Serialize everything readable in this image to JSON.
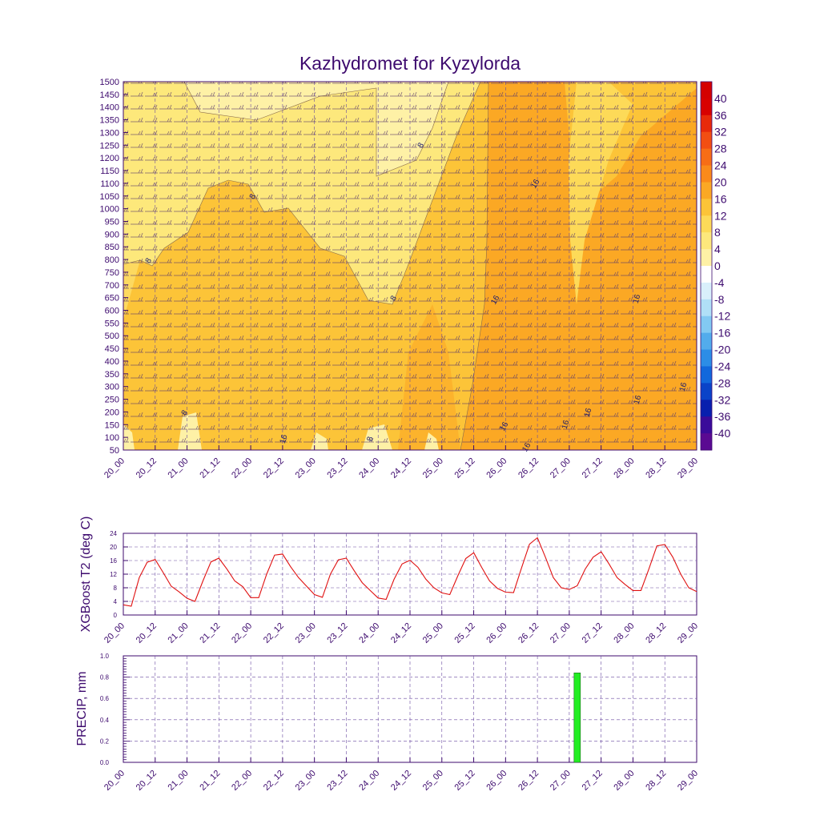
{
  "title": "Kazhydromet for Kyzylorda",
  "time_labels": [
    "20_00",
    "20_12",
    "21_00",
    "21_12",
    "22_00",
    "22_12",
    "23_00",
    "23_12",
    "24_00",
    "24_12",
    "25_00",
    "25_12",
    "26_00",
    "26_12",
    "27_00",
    "27_12",
    "28_00",
    "28_12",
    "29_00"
  ],
  "cross_section": {
    "y_ticks": [
      "50",
      "100",
      "150",
      "200",
      "250",
      "300",
      "350",
      "400",
      "450",
      "500",
      "550",
      "600",
      "650",
      "700",
      "750",
      "800",
      "850",
      "900",
      "950",
      "1000",
      "1050",
      "1100",
      "1150",
      "1200",
      "1250",
      "1300",
      "1350",
      "1400",
      "1450",
      "1500"
    ],
    "colorbar_labels": [
      "40",
      "36",
      "32",
      "28",
      "24",
      "20",
      "16",
      "12",
      "8",
      "4",
      "0",
      "-4",
      "-8",
      "-12",
      "-16",
      "-20",
      "-24",
      "-28",
      "-32",
      "-36",
      "-40"
    ],
    "colorbar_colors": [
      "#d80000",
      "#e82a0a",
      "#f24e12",
      "#f76d16",
      "#fa8a1a",
      "#fba824",
      "#fcc438",
      "#fdda58",
      "#fde87c",
      "#fef1a6",
      "#ffffff",
      "#d9f0fb",
      "#b0e0f7",
      "#82c9f2",
      "#52acec",
      "#2c8de6",
      "#1268dc",
      "#0a43c8",
      "#081fae",
      "#3a0b9a",
      "#5a0a92"
    ],
    "contour_labels": [
      "8",
      "8",
      "8",
      "8",
      "16",
      "8",
      "16",
      "16",
      "16",
      "16",
      "16",
      "16",
      "16",
      "16",
      "16",
      "8"
    ]
  },
  "chart_data": [
    {
      "type": "line",
      "ylabel": "XGBoost T2 (deg C)",
      "ylim": [
        0,
        24
      ],
      "y_ticks": [
        "0",
        "4",
        "8",
        "12",
        "16",
        "20",
        "24"
      ],
      "x": [
        "20_00",
        "20_03",
        "20_06",
        "20_09",
        "20_12",
        "20_15",
        "20_18",
        "20_21",
        "21_00",
        "21_03",
        "21_06",
        "21_09",
        "21_12",
        "21_15",
        "21_18",
        "21_21",
        "22_00",
        "22_03",
        "22_06",
        "22_09",
        "22_12",
        "22_15",
        "22_18",
        "22_21",
        "23_00",
        "23_03",
        "23_06",
        "23_09",
        "23_12",
        "23_15",
        "23_18",
        "23_21",
        "24_00",
        "24_03",
        "24_06",
        "24_09",
        "24_12",
        "24_15",
        "24_18",
        "24_21",
        "25_00",
        "25_03",
        "25_06",
        "25_09",
        "25_12",
        "25_15",
        "25_18",
        "25_21",
        "26_00",
        "26_03",
        "26_06",
        "26_09",
        "26_12",
        "26_15",
        "26_18",
        "26_21",
        "27_00",
        "27_03",
        "27_06",
        "27_09",
        "27_12",
        "27_15",
        "27_18",
        "27_21",
        "28_00",
        "28_03",
        "28_06",
        "28_09",
        "28_12",
        "28_15",
        "28_18",
        "28_21",
        "29_00"
      ],
      "series": [
        {
          "values": [
            3.0,
            2.6,
            11.0,
            15.5,
            16.3,
            12.5,
            8.5,
            6.8,
            4.9,
            4.0,
            10.0,
            15.6,
            16.7,
            13.5,
            10.0,
            8.3,
            5.1,
            5.1,
            12.0,
            17.6,
            17.9,
            14.2,
            11.0,
            8.5,
            6.0,
            5.2,
            12.0,
            16.2,
            16.7,
            13.0,
            9.5,
            7.2,
            5.0,
            4.6,
            10.5,
            15.0,
            16.1,
            14.0,
            10.5,
            8.0,
            6.5,
            6.0,
            11.5,
            16.6,
            18.3,
            14.0,
            10.0,
            7.8,
            6.7,
            6.6,
            13.8,
            20.8,
            22.7,
            17.0,
            11.0,
            8.0,
            7.5,
            8.6,
            13.5,
            17.0,
            18.6,
            15.0,
            11.0,
            9.0,
            7.2,
            7.2,
            13.5,
            20.3,
            20.7,
            17.0,
            12.0,
            8.0,
            6.9
          ]
        }
      ]
    },
    {
      "type": "bar",
      "ylabel": "PRECIP, mm",
      "ylim": [
        0.0,
        1.0
      ],
      "y_ticks": [
        "0.0",
        "0.2",
        "0.4",
        "0.6",
        "0.8",
        "1.0"
      ],
      "bars": [
        {
          "x": "27_03",
          "value": 0.84,
          "color": "#22ee22"
        }
      ]
    }
  ]
}
